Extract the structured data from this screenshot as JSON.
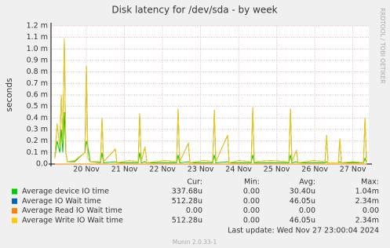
{
  "chart_data": {
    "type": "line",
    "title": "Disk latency for /dev/sda - by week",
    "y_label": "seconds",
    "side_text": "RRDTOOL / TOBI OETIKER",
    "xlim": [
      19.07,
      27.42
    ],
    "xticks": [
      {
        "value": 20,
        "label": "20 Nov"
      },
      {
        "value": 21,
        "label": "21 Nov"
      },
      {
        "value": 22,
        "label": "22 Nov"
      },
      {
        "value": 23,
        "label": "23 Nov"
      },
      {
        "value": 24,
        "label": "24 Nov"
      },
      {
        "value": 25,
        "label": "25 Nov"
      },
      {
        "value": 26,
        "label": "26 Nov"
      },
      {
        "value": 27,
        "label": "27 Nov"
      }
    ],
    "ylim": [
      0,
      0.0012
    ],
    "yticks": [
      {
        "value": 0,
        "label": "0.0"
      },
      {
        "value": 0.0001,
        "label": "0.1 m"
      },
      {
        "value": 0.0002,
        "label": "0.2 m"
      },
      {
        "value": 0.0003,
        "label": "0.3 m"
      },
      {
        "value": 0.0004,
        "label": "0.4 m"
      },
      {
        "value": 0.0005,
        "label": "0.5 m"
      },
      {
        "value": 0.0006,
        "label": "0.6 m"
      },
      {
        "value": 0.0007,
        "label": "0.7 m"
      },
      {
        "value": 0.0008,
        "label": "0.8 m"
      },
      {
        "value": 0.0009,
        "label": "0.9 m"
      },
      {
        "value": 0.001,
        "label": "1.0 m"
      },
      {
        "value": 0.0011,
        "label": "1.1 m"
      },
      {
        "value": 0.0012,
        "label": "1.2 m"
      }
    ],
    "grid": true,
    "x": [
      19.17,
      19.23,
      19.3,
      19.34,
      19.38,
      19.42,
      19.46,
      19.5,
      19.69,
      19.96,
      20.0,
      20.04,
      20.1,
      20.37,
      20.41,
      20.45,
      20.76,
      20.8,
      21.13,
      21.36,
      21.4,
      21.44,
      21.54,
      21.59,
      22.06,
      22.37,
      22.41,
      22.45,
      22.68,
      22.72,
      23.09,
      23.32,
      23.36,
      23.4,
      23.71,
      23.75,
      24.02,
      24.33,
      24.37,
      24.41,
      24.84,
      25.32,
      25.36,
      25.4,
      25.52,
      25.56,
      25.98,
      26.27,
      26.31,
      26.35,
      26.62,
      26.66,
      26.7,
      27.01,
      27.28,
      27.32,
      27.36
    ],
    "legend_headers": [
      "Cur:",
      "Min:",
      "Avg:",
      "Max:"
    ],
    "series": [
      {
        "name": "Average device IO time",
        "color": "#00cc00",
        "stats": [
          "337.68u",
          "0.00",
          "30.40u",
          "1.04m"
        ],
        "values": [
          5e-05,
          0.0002,
          0.0001,
          0.0003,
          0.0001,
          0.00045,
          0.0001,
          2e-05,
          2e-05,
          0.0001,
          0.0002,
          0.00015,
          2e-05,
          1e-05,
          0.0001,
          1e-05,
          2e-05,
          1e-05,
          1e-05,
          1e-05,
          0.0001,
          1e-05,
          2e-05,
          1e-05,
          1e-05,
          1e-05,
          8e-05,
          1e-05,
          2e-05,
          1e-05,
          1e-05,
          1e-05,
          8e-05,
          1e-05,
          2e-05,
          1e-05,
          1e-05,
          1e-05,
          8e-05,
          1e-05,
          1e-05,
          1e-05,
          8e-05,
          1e-05,
          2e-05,
          1e-05,
          1e-05,
          1e-05,
          2e-05,
          1e-05,
          1e-05,
          2e-05,
          1e-05,
          1e-05,
          1e-05,
          5e-05,
          1e-05
        ]
      },
      {
        "name": "Average IO Wait time",
        "color": "#0066b3",
        "stats": [
          "512.28u",
          "0.00",
          "46.05u",
          "2.34m"
        ],
        "values": [
          5e-05,
          0.00035,
          0.00015,
          0.0006,
          0.0002,
          0.00109,
          0.0001,
          2e-05,
          3e-05,
          0.0001,
          0.00085,
          5e-05,
          2e-05,
          2e-05,
          0.0004,
          2e-05,
          0.00013,
          1e-05,
          3e-05,
          2e-05,
          0.00044,
          2e-05,
          0.00015,
          1e-05,
          3e-05,
          2e-05,
          0.00048,
          2e-05,
          0.00018,
          1e-05,
          3e-05,
          2e-05,
          0.00047,
          2e-05,
          0.00025,
          1e-05,
          3e-05,
          2e-05,
          0.00049,
          2e-05,
          3e-05,
          2e-05,
          0.00048,
          2e-05,
          0.00012,
          1e-05,
          3e-05,
          2e-05,
          0.00025,
          1e-05,
          1e-05,
          0.00022,
          1e-05,
          2e-05,
          1e-05,
          0.0004,
          1e-05
        ]
      },
      {
        "name": "Average Read IO Wait time",
        "color": "#ff8000",
        "stats": [
          "0.00",
          "0.00",
          "0.00",
          "0.00"
        ],
        "values": [
          0,
          0,
          0,
          0,
          0,
          0,
          0,
          0,
          0,
          0,
          0,
          0,
          0,
          0,
          0,
          0,
          0,
          0,
          0,
          0,
          0,
          0,
          0,
          0,
          0,
          0,
          0,
          0,
          0,
          0,
          0,
          0,
          0,
          0,
          0,
          0,
          0,
          0,
          0,
          0,
          0,
          0,
          0,
          0,
          0,
          0,
          0,
          0,
          0,
          0,
          0,
          0,
          0,
          0,
          0,
          0,
          0
        ]
      },
      {
        "name": "Average Write IO Wait time",
        "color": "#ffcc00",
        "stats": [
          "512.28u",
          "0.00",
          "46.05u",
          "2.34m"
        ],
        "values": [
          5e-05,
          0.00035,
          0.00015,
          0.0006,
          0.0002,
          0.00109,
          0.0001,
          2e-05,
          3e-05,
          0.0001,
          0.00085,
          5e-05,
          2e-05,
          2e-05,
          0.0004,
          2e-05,
          0.00013,
          1e-05,
          3e-05,
          2e-05,
          0.00044,
          2e-05,
          0.00015,
          1e-05,
          3e-05,
          2e-05,
          0.00048,
          2e-05,
          0.00018,
          1e-05,
          3e-05,
          2e-05,
          0.00047,
          2e-05,
          0.00025,
          1e-05,
          3e-05,
          2e-05,
          0.00049,
          2e-05,
          3e-05,
          2e-05,
          0.00048,
          2e-05,
          0.00012,
          1e-05,
          3e-05,
          2e-05,
          0.00025,
          1e-05,
          1e-05,
          0.00022,
          1e-05,
          2e-05,
          1e-05,
          0.0004,
          1e-05
        ]
      }
    ],
    "last_update": "Last update:  Wed Nov 27 23:00:04 2024",
    "footer": "Munin 2.0.33-1"
  }
}
